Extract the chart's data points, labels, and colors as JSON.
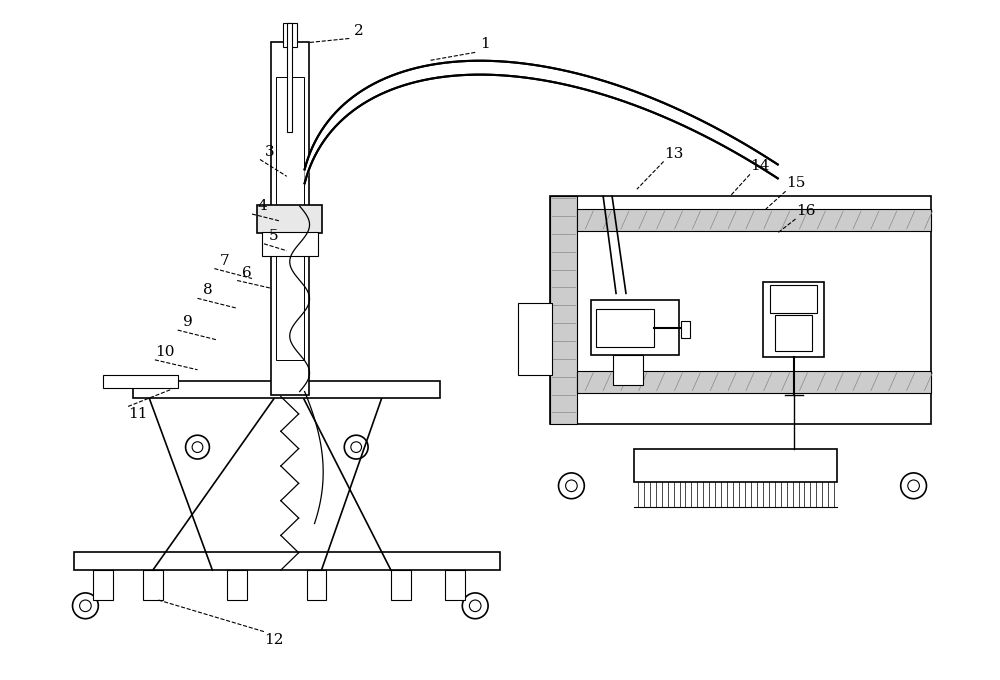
{
  "bg_color": "#ffffff",
  "line_color": "#000000",
  "fig_width": 10.0,
  "fig_height": 6.8,
  "dpi": 100
}
